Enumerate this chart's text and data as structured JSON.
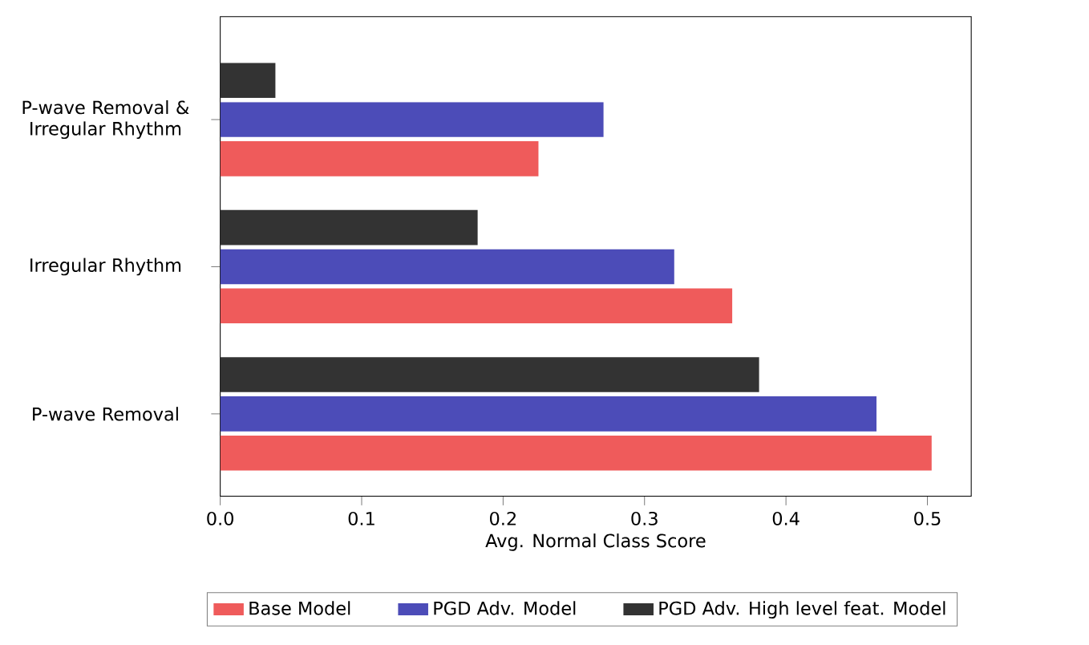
{
  "chart_data": {
    "type": "bar",
    "orientation": "horizontal",
    "xlabel": "Avg. Normal Class Score",
    "categories": [
      "P-wave Removal & Irregular Rhythm",
      "Irregular Rhythm",
      "P-wave Removal"
    ],
    "series": [
      {
        "name": "Base Model",
        "color": "#ef5b5b",
        "values": [
          0.225,
          0.362,
          0.503
        ]
      },
      {
        "name": "PGD Adv. Model",
        "color": "#4c4cb8",
        "values": [
          0.271,
          0.321,
          0.464
        ]
      },
      {
        "name": "PGD Adv. High level feat. Model",
        "color": "#333333",
        "values": [
          0.039,
          0.182,
          0.381
        ]
      }
    ],
    "xlim": [
      0,
      0.531
    ],
    "xticks": [
      {
        "value": 0,
        "label": "0.0"
      },
      0.1,
      0.2,
      0.3,
      0.4,
      0.5
    ],
    "grid": false,
    "legend": "bottom"
  }
}
